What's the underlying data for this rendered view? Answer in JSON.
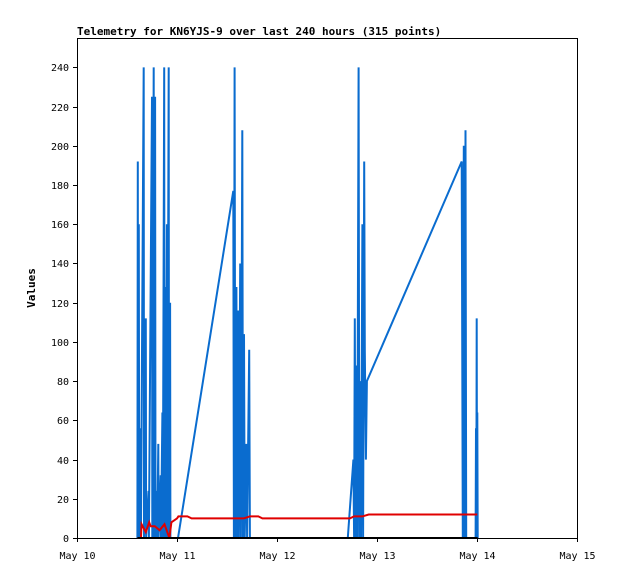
{
  "chart_data": {
    "type": "line",
    "title": "Telemetry for KN6YJS-9 over last 240 hours (315 points)",
    "xlabel": "",
    "ylabel": "Values",
    "x_axis": {
      "type": "date",
      "range": [
        "May 10",
        "May 15"
      ],
      "ticks": [
        "May 10",
        "May 11",
        "May 12",
        "May 13",
        "May 14",
        "May 15"
      ]
    },
    "y_axis": {
      "range": [
        0,
        255
      ],
      "ticks": [
        "0",
        "20",
        "40",
        "60",
        "80",
        "100",
        "120",
        "140",
        "160",
        "180",
        "200",
        "220",
        "240"
      ]
    },
    "grid": false,
    "legend": "none",
    "series": [
      {
        "color": "#0a6ccf",
        "points": [
          [
            "May 10 14:30",
            0
          ],
          [
            "May 10 14:35",
            192
          ],
          [
            "May 10 14:40",
            0
          ],
          [
            "May 10 14:50",
            160
          ],
          [
            "May 10 14:55",
            0
          ],
          [
            "May 10 15:05",
            56
          ],
          [
            "May 10 15:10",
            0
          ],
          [
            "May 10 15:15",
            48
          ],
          [
            "May 10 15:20",
            0
          ],
          [
            "May 10 16:00",
            240
          ],
          [
            "May 10 16:05",
            0
          ],
          [
            "May 10 16:30",
            112
          ],
          [
            "May 10 16:35",
            0
          ],
          [
            "May 10 17:10",
            24
          ],
          [
            "May 10 17:15",
            0
          ],
          [
            "May 10 18:00",
            225
          ],
          [
            "May 10 18:05",
            0
          ],
          [
            "May 10 18:25",
            240
          ],
          [
            "May 10 18:30",
            0
          ],
          [
            "May 10 18:45",
            225
          ],
          [
            "May 10 18:50",
            0
          ],
          [
            "May 10 19:10",
            24
          ],
          [
            "May 10 19:15",
            0
          ],
          [
            "May 10 19:30",
            48
          ],
          [
            "May 10 19:35",
            0
          ],
          [
            "May 10 20:05",
            32
          ],
          [
            "May 10 20:10",
            0
          ],
          [
            "May 10 20:30",
            64
          ],
          [
            "May 10 20:35",
            0
          ],
          [
            "May 10 20:55",
            240
          ],
          [
            "May 10 21:00",
            0
          ],
          [
            "May 10 21:15",
            128
          ],
          [
            "May 10 21:20",
            0
          ],
          [
            "May 10 21:35",
            160
          ],
          [
            "May 10 21:40",
            0
          ],
          [
            "May 10 22:00",
            240
          ],
          [
            "May 10 22:05",
            0
          ],
          [
            "May 10 22:20",
            120
          ],
          [
            "May 10 22:25",
            0
          ],
          [
            "May 11 00:15",
            0
          ],
          [
            "May 11 13:30",
            177
          ],
          [
            "May 11 13:40",
            0
          ],
          [
            "May 11 13:50",
            240
          ],
          [
            "May 11 14:00",
            0
          ],
          [
            "May 11 14:15",
            128
          ],
          [
            "May 11 14:25",
            0
          ],
          [
            "May 11 14:40",
            116
          ],
          [
            "May 11 14:50",
            0
          ],
          [
            "May 11 15:10",
            140
          ],
          [
            "May 11 15:20",
            0
          ],
          [
            "May 11 15:40",
            208
          ],
          [
            "May 11 15:50",
            0
          ],
          [
            "May 11 16:05",
            104
          ],
          [
            "May 11 16:15",
            0
          ],
          [
            "May 11 16:40",
            48
          ],
          [
            "May 11 16:50",
            0
          ],
          [
            "May 11 17:20",
            96
          ],
          [
            "May 11 17:30",
            0
          ],
          [
            "May 12 17:00",
            0
          ],
          [
            "May 12 18:20",
            40
          ],
          [
            "May 12 18:30",
            0
          ],
          [
            "May 12 18:40",
            112
          ],
          [
            "May 12 18:50",
            0
          ],
          [
            "May 12 19:05",
            88
          ],
          [
            "May 12 19:15",
            0
          ],
          [
            "May 12 19:35",
            240
          ],
          [
            "May 12 19:45",
            0
          ],
          [
            "May 12 20:00",
            80
          ],
          [
            "May 12 20:10",
            0
          ],
          [
            "May 12 20:30",
            160
          ],
          [
            "May 12 20:40",
            0
          ],
          [
            "May 12 20:55",
            192
          ],
          [
            "May 12 21:05",
            96
          ],
          [
            "May 12 21:20",
            40
          ],
          [
            "May 12 21:35",
            80
          ],
          [
            "May 13 20:20",
            192
          ],
          [
            "May 13 20:35",
            0
          ],
          [
            "May 13 20:50",
            200
          ],
          [
            "May 13 21:05",
            0
          ],
          [
            "May 13 21:15",
            208
          ],
          [
            "May 13 21:25",
            0
          ],
          [
            "May 13 23:40",
            0
          ],
          [
            "May 13 23:45",
            56
          ],
          [
            "May 13 23:50",
            0
          ],
          [
            "May 13 23:55",
            112
          ],
          [
            "May 14 00:00",
            0
          ],
          [
            "May 14 00:05",
            64
          ],
          [
            "May 14 00:10",
            0
          ]
        ]
      },
      {
        "color": "#e00000",
        "points": [
          [
            "May 10 14:30",
            0
          ],
          [
            "May 10 15:20",
            0
          ],
          [
            "May 10 15:30",
            7
          ],
          [
            "May 10 16:30",
            3
          ],
          [
            "May 10 17:20",
            8
          ],
          [
            "May 10 17:40",
            6
          ],
          [
            "May 10 18:40",
            6
          ],
          [
            "May 10 19:50",
            4
          ],
          [
            "May 10 21:00",
            7
          ],
          [
            "May 10 22:10",
            0
          ],
          [
            "May 10 22:40",
            8
          ],
          [
            "May 11 00:00",
            10
          ],
          [
            "May 11 00:20",
            11
          ],
          [
            "May 11 02:30",
            11
          ],
          [
            "May 11 03:30",
            10
          ],
          [
            "May 11 13:00",
            10
          ],
          [
            "May 11 14:00",
            10
          ],
          [
            "May 11 16:00",
            10
          ],
          [
            "May 11 17:30",
            11
          ],
          [
            "May 11 19:30",
            11
          ],
          [
            "May 11 20:30",
            10
          ],
          [
            "May 12 17:30",
            10
          ],
          [
            "May 12 18:30",
            11
          ],
          [
            "May 12 20:30",
            11
          ],
          [
            "May 12 22:00",
            12
          ],
          [
            "May 14 00:05",
            12
          ]
        ]
      },
      {
        "color": "#000000",
        "points": [
          [
            "May 10 14:30",
            0
          ],
          [
            "May 14 00:10",
            0
          ]
        ]
      }
    ]
  }
}
